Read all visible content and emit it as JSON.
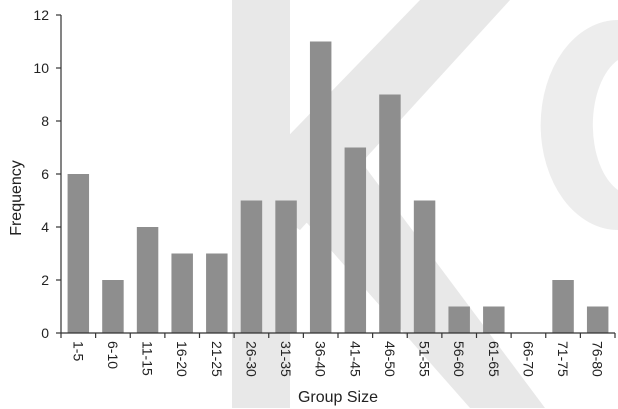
{
  "chart_data": {
    "type": "bar",
    "xlabel": "Group Size",
    "ylabel": "Frequency",
    "categories": [
      "1-5",
      "6-10",
      "11-15",
      "16-20",
      "21-25",
      "26-30",
      "31-35",
      "36-40",
      "41-45",
      "46-50",
      "51-55",
      "56-60",
      "61-65",
      "66-70",
      "71-75",
      "76-80"
    ],
    "values": [
      6,
      2,
      4,
      3,
      3,
      5,
      5,
      11,
      7,
      9,
      5,
      1,
      1,
      0,
      2,
      1
    ],
    "ylim": [
      0,
      12
    ],
    "yticks": [
      "0",
      "2",
      "4",
      "6",
      "8",
      "10",
      "12"
    ],
    "grid": false,
    "legend": "none",
    "colors": {
      "bar": "#8e8e8e",
      "axis": "#333333",
      "watermark": "#e4e4e4"
    }
  }
}
